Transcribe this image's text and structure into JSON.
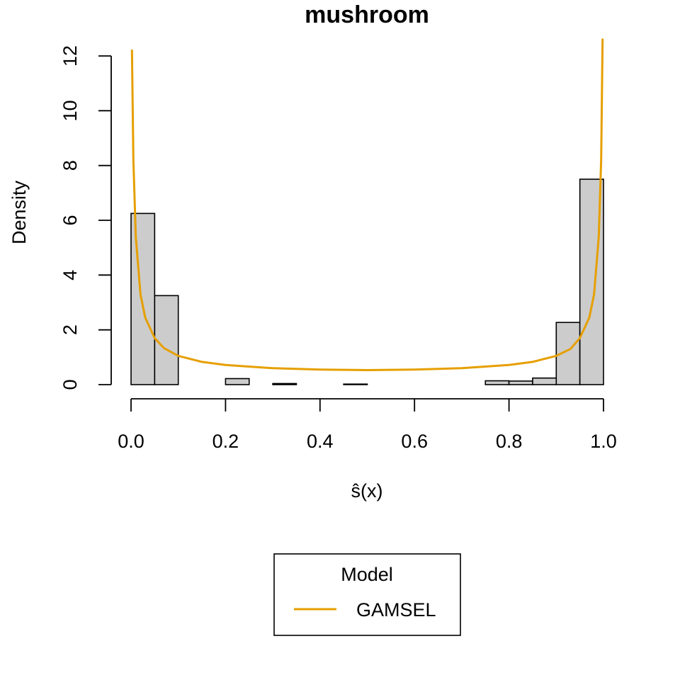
{
  "chart_data": {
    "type": "bar",
    "title": "mushroom",
    "xlabel": "ŝ(x)",
    "ylabel": "Density",
    "xlim": [
      0,
      1
    ],
    "ylim": [
      0,
      12
    ],
    "x_ticks": [
      "0.0",
      "0.2",
      "0.4",
      "0.6",
      "0.8",
      "1.0"
    ],
    "x_tick_values": [
      0,
      0.2,
      0.4,
      0.6,
      0.8,
      1.0
    ],
    "y_ticks": [
      "0",
      "2",
      "4",
      "6",
      "8",
      "10",
      "12"
    ],
    "y_tick_values": [
      0,
      2,
      4,
      6,
      8,
      10,
      12
    ],
    "histogram": {
      "bin_edges": [
        0,
        0.05,
        0.1,
        0.15,
        0.2,
        0.25,
        0.3,
        0.35,
        0.4,
        0.45,
        0.5,
        0.55,
        0.6,
        0.65,
        0.7,
        0.75,
        0.8,
        0.85,
        0.9,
        0.95,
        1.0
      ],
      "density": [
        6.25,
        3.25,
        0,
        0,
        0.22,
        0,
        0.04,
        0,
        0,
        0.02,
        0,
        0,
        0,
        0,
        0,
        0.14,
        0.13,
        0.24,
        2.27,
        7.5
      ],
      "fill_color": "#cccccc"
    },
    "series": [
      {
        "name": "GAMSEL",
        "color": "#E69F00",
        "type": "line",
        "x": [
          0.002,
          0.005,
          0.01,
          0.02,
          0.03,
          0.05,
          0.07,
          0.1,
          0.15,
          0.2,
          0.3,
          0.4,
          0.5,
          0.6,
          0.7,
          0.8,
          0.85,
          0.9,
          0.93,
          0.95,
          0.97,
          0.98,
          0.99,
          0.995,
          0.998
        ],
        "y": [
          12.2,
          8.2,
          5.4,
          3.3,
          2.45,
          1.7,
          1.33,
          1.05,
          0.83,
          0.72,
          0.6,
          0.55,
          0.53,
          0.55,
          0.6,
          0.72,
          0.83,
          1.05,
          1.3,
          1.7,
          2.45,
          3.3,
          5.4,
          8.2,
          12.6
        ]
      }
    ],
    "legend": {
      "title": "Model",
      "placement": "bottom-center",
      "entries": [
        "GAMSEL"
      ]
    }
  }
}
